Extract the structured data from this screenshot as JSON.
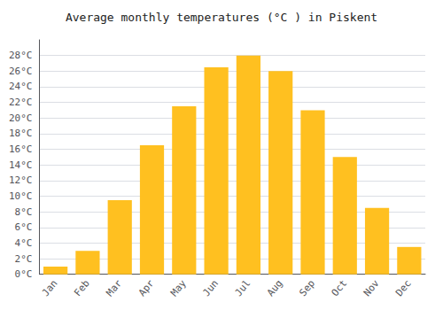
{
  "chart_data": {
    "type": "bar",
    "title": "Average monthly temperatures (°C ) in Piskent",
    "categories": [
      "Jan",
      "Feb",
      "Mar",
      "Apr",
      "May",
      "Jun",
      "Jul",
      "Aug",
      "Sep",
      "Oct",
      "Nov",
      "Dec"
    ],
    "values": [
      1,
      3,
      9.5,
      16.5,
      21.5,
      26.5,
      28,
      26,
      21,
      15,
      8.5,
      3.5
    ],
    "color": "#FFC020",
    "ylim": [
      0,
      30
    ],
    "yticks": [
      {
        "value": 0,
        "label": "0°C"
      },
      {
        "value": 2,
        "label": "2°C"
      },
      {
        "value": 4,
        "label": "4°C"
      },
      {
        "value": 6,
        "label": "6°C"
      },
      {
        "value": 8,
        "label": "8°C"
      },
      {
        "value": 10,
        "label": "10°C"
      },
      {
        "value": 12,
        "label": "12°C"
      },
      {
        "value": 14,
        "label": "14°C"
      },
      {
        "value": 16,
        "label": "16°C"
      },
      {
        "value": 18,
        "label": "18°C"
      },
      {
        "value": 20,
        "label": "20°C"
      },
      {
        "value": 22,
        "label": "22°C"
      },
      {
        "value": 24,
        "label": "24°C"
      },
      {
        "value": 26,
        "label": "26°C"
      },
      {
        "value": 28,
        "label": "28°C"
      }
    ],
    "grid": true
  }
}
